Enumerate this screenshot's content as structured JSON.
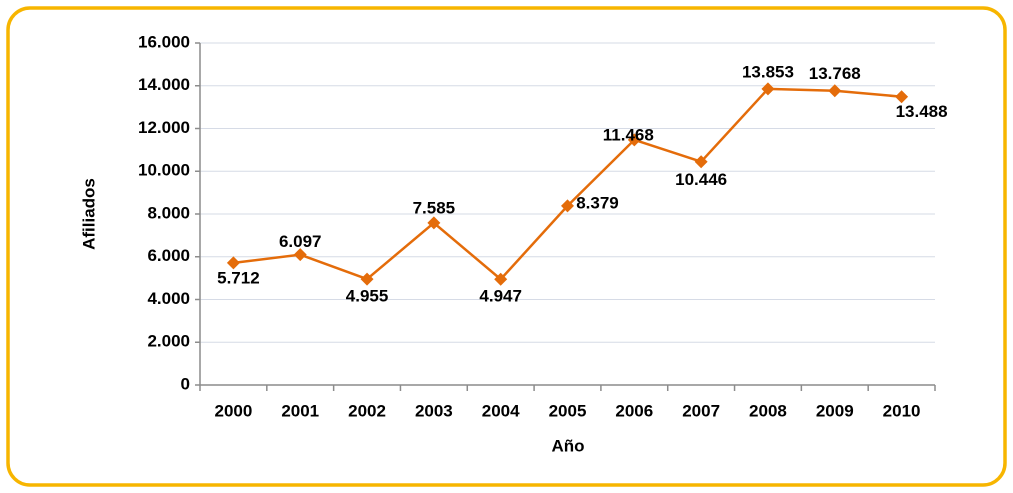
{
  "chart_data": {
    "type": "line",
    "x_label": "Año",
    "y_label": "Afiliados",
    "categories": [
      "2000",
      "2001",
      "2002",
      "2003",
      "2004",
      "2005",
      "2006",
      "2007",
      "2008",
      "2009",
      "2010"
    ],
    "series": [
      {
        "name": "Afiliados",
        "color": "#e46c0a",
        "values": [
          5712,
          6097,
          4955,
          7585,
          4947,
          8379,
          11468,
          10446,
          13853,
          13768,
          13488
        ],
        "value_labels": [
          "5.712",
          "6.097",
          "4.955",
          "7.585",
          "4.947",
          "8.379",
          "11.468",
          "10.446",
          "13.853",
          "13.768",
          "13.488"
        ]
      }
    ],
    "ylim": [
      0,
      16000
    ],
    "yticks": [
      0,
      {
        "value": 2000,
        "label": "2.000"
      },
      {
        "value": 4000,
        "label": "4.000"
      },
      {
        "value": 6000,
        "label": "6.000"
      },
      {
        "value": 8000,
        "label": "8.000"
      },
      {
        "value": 10000,
        "label": "10.000"
      },
      {
        "value": 12000,
        "label": "12.000"
      },
      {
        "value": 14000,
        "label": "14.000"
      },
      {
        "value": 16000,
        "label": "16.000"
      }
    ],
    "grid": true
  }
}
